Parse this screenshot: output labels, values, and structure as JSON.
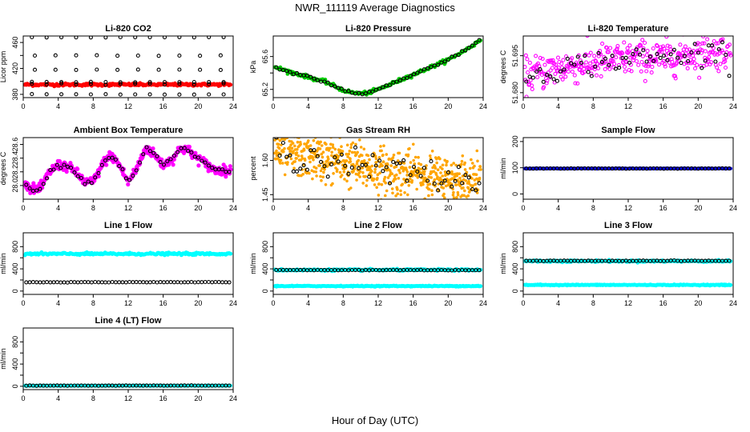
{
  "title": "NWR_111119  Average Diagnostics",
  "xlabel": "Hour of Day (UTC)",
  "chart_data": [
    {
      "type": "scatter",
      "title": "Li-820 CO2",
      "ylabel": "Licor ppm",
      "xlim": [
        0,
        24
      ],
      "ylim": [
        375,
        470
      ],
      "yticks": [
        380,
        400,
        420,
        440,
        460
      ],
      "ytick_labels": [
        "380",
        "",
        "420",
        "",
        "460"
      ],
      "xticks": [
        0,
        4,
        8,
        12,
        16,
        20,
        24
      ],
      "series": [
        {
          "pattern": "flat",
          "level": 395,
          "noise": 1,
          "color": "#ff0000",
          "size": 2.4,
          "count": 260
        },
        {
          "pattern": "flat",
          "level": 396,
          "noise": 0.8,
          "color": "#000000",
          "size": 2.0,
          "count": 14,
          "open": true
        },
        {
          "pattern": "flat",
          "level": 380,
          "noise": 0.3,
          "color": "#000000",
          "size": 2.0,
          "count": 14,
          "open": true
        },
        {
          "pattern": "flat",
          "level": 399,
          "noise": 0.3,
          "color": "#000000",
          "size": 2.0,
          "count": 14,
          "open": true
        },
        {
          "pattern": "flat",
          "level": 418,
          "noise": 0.3,
          "color": "#000000",
          "size": 2.0,
          "count": 10,
          "open": true
        },
        {
          "pattern": "flat",
          "level": 440,
          "noise": 0.3,
          "color": "#000000",
          "size": 2.0,
          "count": 10,
          "open": true
        },
        {
          "pattern": "flat",
          "level": 468,
          "noise": 0.2,
          "color": "#000000",
          "size": 2.0,
          "count": 14,
          "open": true
        }
      ]
    },
    {
      "type": "scatter",
      "title": "Li-820 Pressure",
      "ylabel": "kPa",
      "xlim": [
        0,
        24
      ],
      "ylim": [
        65.1,
        65.85
      ],
      "yticks": [
        65.2,
        65.4,
        65.6
      ],
      "ytick_labels": [
        "65.2",
        "",
        "65.6"
      ],
      "xticks": [
        0,
        4,
        8,
        12,
        16,
        20,
        24
      ],
      "series": [
        {
          "pattern": "curve",
          "x": [
            0,
            2,
            4,
            6,
            8,
            9,
            10,
            11,
            12,
            14,
            16,
            18,
            20,
            22,
            24
          ],
          "y": [
            65.48,
            65.41,
            65.35,
            65.29,
            65.19,
            65.16,
            65.15,
            65.16,
            65.2,
            65.29,
            65.38,
            65.47,
            65.56,
            65.68,
            65.82
          ],
          "noise": 0.01,
          "color": "#00cc00",
          "size": 2.4,
          "count": 230
        },
        {
          "pattern": "curve",
          "x": [
            0,
            2,
            4,
            6,
            8,
            9,
            10,
            11,
            12,
            14,
            16,
            18,
            20,
            22,
            24
          ],
          "y": [
            65.48,
            65.41,
            65.35,
            65.29,
            65.19,
            65.16,
            65.15,
            65.16,
            65.2,
            65.29,
            65.38,
            65.47,
            65.56,
            65.68,
            65.82
          ],
          "noise": 0.006,
          "color": "#000000",
          "size": 2.0,
          "count": 60,
          "open": true
        }
      ]
    },
    {
      "type": "scatter",
      "title": "Li-820 Temperature",
      "ylabel": "degrees C",
      "xlim": [
        0,
        24
      ],
      "ylim": [
        51.678,
        51.703
      ],
      "yticks": [
        51.68,
        51.695
      ],
      "ytick_labels": [
        "51.680",
        "51.695"
      ],
      "xticks": [
        0,
        4,
        8,
        12,
        16,
        20,
        24
      ],
      "series": [
        {
          "pattern": "curve",
          "x": [
            0,
            4,
            8,
            12,
            16,
            20,
            24
          ],
          "y": [
            51.687,
            51.69,
            51.692,
            51.694,
            51.694,
            51.696,
            51.697
          ],
          "noise": 0.0035,
          "color": "#ff00ff",
          "size": 2.0,
          "count": 360,
          "open": true
        },
        {
          "pattern": "curve",
          "x": [
            0,
            4,
            8,
            12,
            16,
            20,
            24
          ],
          "y": [
            51.687,
            51.69,
            51.692,
            51.694,
            51.694,
            51.696,
            51.697
          ],
          "noise": 0.0025,
          "color": "#000000",
          "size": 2.0,
          "count": 60,
          "open": true
        }
      ]
    },
    {
      "type": "scatter",
      "title": "Ambient Box Temperature",
      "ylabel": "degrees C",
      "xlim": [
        0,
        24
      ],
      "ylim": [
        27.8,
        28.7
      ],
      "yticks": [
        28.0,
        28.2,
        28.4,
        28.6
      ],
      "ytick_labels": [
        "28.0",
        "28.2",
        "28.4",
        "28.6"
      ],
      "xticks": [
        0,
        4,
        8,
        12,
        16,
        20,
        24
      ],
      "series": [
        {
          "pattern": "curve",
          "x": [
            0,
            1,
            2,
            3,
            4,
            5,
            6,
            7,
            8,
            9,
            10,
            11,
            12,
            13,
            14,
            15,
            16,
            17,
            18,
            19,
            20,
            21,
            22,
            23,
            24
          ],
          "y": [
            28.05,
            27.95,
            27.95,
            28.2,
            28.3,
            28.28,
            28.2,
            28.05,
            28.05,
            28.3,
            28.45,
            28.3,
            28.05,
            28.25,
            28.55,
            28.45,
            28.3,
            28.38,
            28.55,
            28.5,
            28.4,
            28.3,
            28.22,
            28.22,
            28.2
          ],
          "noise": 0.035,
          "color": "#ff00ff",
          "size": 2.6,
          "count": 380
        },
        {
          "pattern": "curve",
          "x": [
            0,
            1,
            2,
            3,
            4,
            5,
            6,
            7,
            8,
            9,
            10,
            11,
            12,
            13,
            14,
            15,
            16,
            17,
            18,
            19,
            20,
            21,
            22,
            23,
            24
          ],
          "y": [
            28.05,
            27.95,
            27.95,
            28.2,
            28.3,
            28.28,
            28.2,
            28.05,
            28.05,
            28.3,
            28.45,
            28.3,
            28.05,
            28.25,
            28.55,
            28.45,
            28.3,
            28.38,
            28.55,
            28.5,
            28.4,
            28.3,
            28.22,
            28.22,
            28.2
          ],
          "noise": 0.015,
          "color": "#000000",
          "size": 2.0,
          "count": 60,
          "open": true
        }
      ]
    },
    {
      "type": "scatter",
      "title": "Gas Stream RH",
      "ylabel": "percent",
      "xlim": [
        0,
        24
      ],
      "ylim": [
        1.43,
        1.7
      ],
      "yticks": [
        1.45,
        1.6
      ],
      "ytick_labels": [
        "1.45",
        "1.60"
      ],
      "xticks": [
        0,
        4,
        8,
        12,
        16,
        20,
        24
      ],
      "series": [
        {
          "pattern": "curve",
          "x": [
            0,
            4,
            8,
            12,
            16,
            20,
            24
          ],
          "y": [
            1.64,
            1.62,
            1.59,
            1.56,
            1.54,
            1.52,
            1.51
          ],
          "noise": 0.05,
          "color": "#ffa500",
          "size": 1.8,
          "count": 700
        },
        {
          "pattern": "curve",
          "x": [
            0,
            4,
            8,
            12,
            16,
            20,
            24
          ],
          "y": [
            1.64,
            1.62,
            1.59,
            1.56,
            1.54,
            1.52,
            1.51
          ],
          "noise": 0.035,
          "color": "#000000",
          "size": 2.0,
          "count": 60,
          "open": true
        }
      ]
    },
    {
      "type": "scatter",
      "title": "Sample Flow",
      "ylabel": "ml/min",
      "xlim": [
        0,
        24
      ],
      "ylim": [
        -20,
        215
      ],
      "yticks": [
        0,
        100,
        200
      ],
      "ytick_labels": [
        "0",
        "100",
        "200"
      ],
      "xticks": [
        0,
        4,
        8,
        12,
        16,
        20,
        24
      ],
      "series": [
        {
          "pattern": "flat",
          "level": 97,
          "noise": 0.5,
          "color": "#0000ff",
          "size": 2.2,
          "count": 260
        },
        {
          "pattern": "flat",
          "level": 97,
          "noise": 0.3,
          "color": "#000000",
          "size": 2.0,
          "count": 60,
          "open": true
        }
      ]
    },
    {
      "type": "scatter",
      "title": "Line 1 Flow",
      "ylabel": "ml/min",
      "xlim": [
        0,
        24
      ],
      "ylim": [
        -60,
        1050
      ],
      "yticks": [
        0,
        200,
        400,
        600,
        800
      ],
      "ytick_labels": [
        "0",
        "",
        "400",
        "",
        "800"
      ],
      "xticks": [
        0,
        4,
        8,
        12,
        16,
        20,
        24
      ],
      "series": [
        {
          "pattern": "flat",
          "level": 670,
          "noise": 10,
          "color": "#00ffff",
          "size": 2.4,
          "count": 260
        },
        {
          "pattern": "flat",
          "level": 160,
          "noise": 2,
          "color": "#000000",
          "size": 2.0,
          "count": 60,
          "open": true
        }
      ]
    },
    {
      "type": "scatter",
      "title": "Line 2 Flow",
      "ylabel": "ml/min",
      "xlim": [
        0,
        24
      ],
      "ylim": [
        -60,
        1050
      ],
      "yticks": [
        0,
        200,
        400,
        600,
        800
      ],
      "ytick_labels": [
        "0",
        "",
        "400",
        "",
        "800"
      ],
      "xticks": [
        0,
        4,
        8,
        12,
        16,
        20,
        24
      ],
      "series": [
        {
          "pattern": "flat",
          "level": 380,
          "noise": 8,
          "color": "#00ffff",
          "size": 2.4,
          "count": 260
        },
        {
          "pattern": "flat",
          "level": 90,
          "noise": 4,
          "color": "#00ffff",
          "size": 2.4,
          "count": 260
        },
        {
          "pattern": "flat",
          "level": 378,
          "noise": 3,
          "color": "#000000",
          "size": 2.0,
          "count": 60,
          "open": true
        }
      ]
    },
    {
      "type": "scatter",
      "title": "Line 3 Flow",
      "ylabel": "ml/min",
      "xlim": [
        0,
        24
      ],
      "ylim": [
        -60,
        1050
      ],
      "yticks": [
        0,
        200,
        400,
        600,
        800
      ],
      "ytick_labels": [
        "0",
        "",
        "400",
        "",
        "800"
      ],
      "xticks": [
        0,
        4,
        8,
        12,
        16,
        20,
        24
      ],
      "series": [
        {
          "pattern": "flat",
          "level": 540,
          "noise": 8,
          "color": "#00ffff",
          "size": 2.4,
          "count": 260
        },
        {
          "pattern": "flat",
          "level": 110,
          "noise": 4,
          "color": "#00ffff",
          "size": 2.4,
          "count": 260
        },
        {
          "pattern": "flat",
          "level": 545,
          "noise": 3,
          "color": "#000000",
          "size": 2.0,
          "count": 60,
          "open": true
        }
      ]
    },
    {
      "type": "scatter",
      "title": "Line 4 (LT) Flow",
      "ylabel": "ml/min",
      "xlim": [
        0,
        24
      ],
      "ylim": [
        -60,
        1050
      ],
      "yticks": [
        0,
        200,
        400,
        600,
        800
      ],
      "ytick_labels": [
        "0",
        "",
        "400",
        "",
        "800"
      ],
      "xticks": [
        0,
        4,
        8,
        12,
        16,
        20,
        24
      ],
      "series": [
        {
          "pattern": "flat",
          "level": 10,
          "noise": 2,
          "color": "#00ffff",
          "size": 2.4,
          "count": 200
        },
        {
          "pattern": "flat",
          "level": 12,
          "noise": 1.5,
          "color": "#000000",
          "size": 2.0,
          "count": 60,
          "open": true
        }
      ]
    }
  ]
}
